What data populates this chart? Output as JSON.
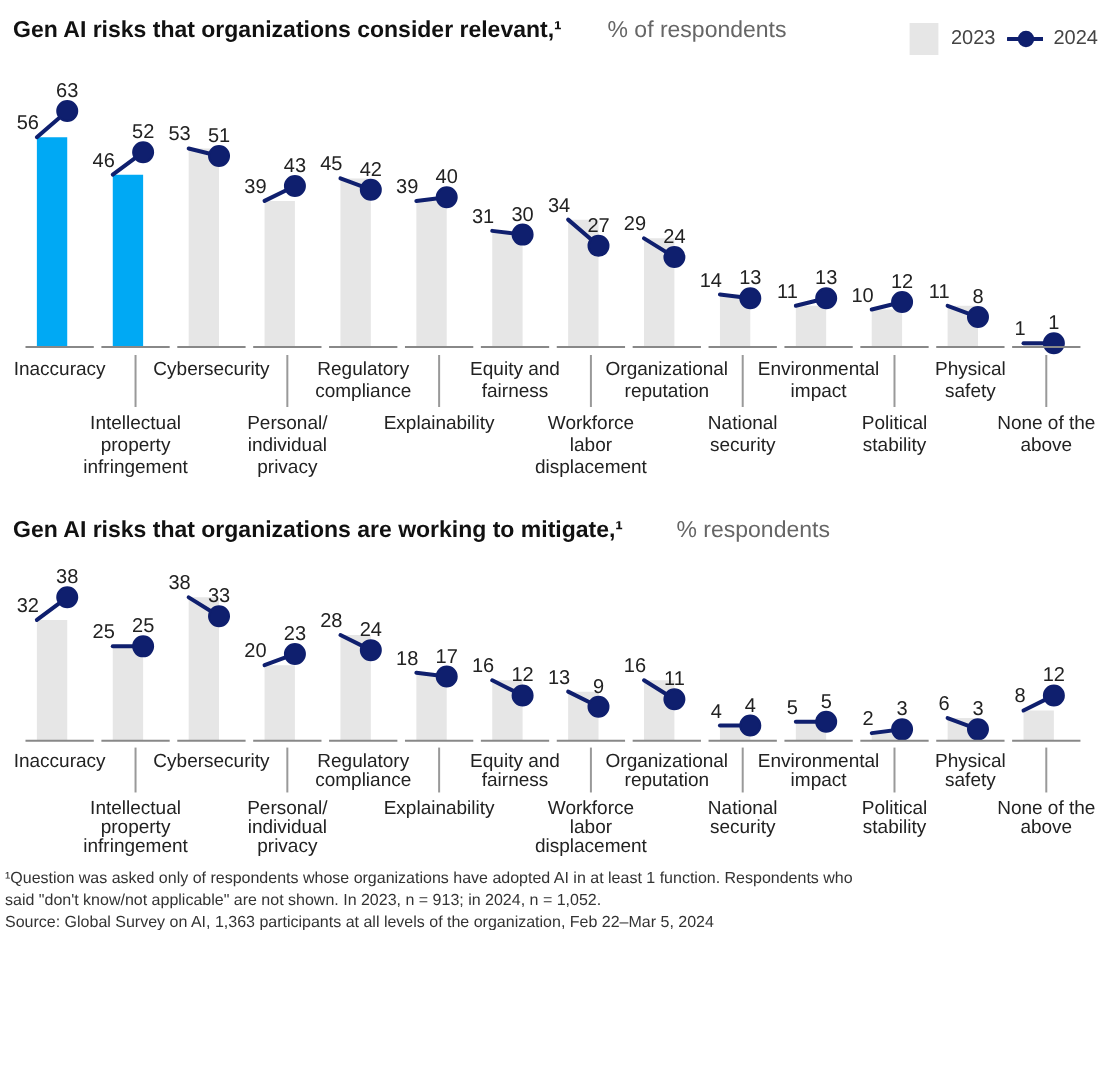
{
  "chart_data": [
    {
      "type": "bar",
      "title": "Gen AI risks that organizations consider relevant,¹",
      "subtitle": "% of respondents",
      "categories": [
        "Inaccuracy",
        "Intellectual property infringement",
        "Cybersecurity",
        "Personal/ individual privacy",
        "Regulatory compliance",
        "Explainability",
        "Equity and fairness",
        "Workforce labor displacement",
        "Organizational reputation",
        "National security",
        "Environmental impact",
        "Political stability",
        "Physical safety",
        "None of the above"
      ],
      "series": [
        {
          "name": "2023",
          "type": "bar",
          "colors": [
            "#00a9f4",
            "#00a9f4",
            "#e6e6e6",
            "#e6e6e6",
            "#e6e6e6",
            "#e6e6e6",
            "#e6e6e6",
            "#e6e6e6",
            "#e6e6e6",
            "#e6e6e6",
            "#e6e6e6",
            "#e6e6e6",
            "#e6e6e6",
            "#e6e6e6"
          ],
          "values": [
            56,
            46,
            53,
            39,
            45,
            39,
            31,
            34,
            29,
            14,
            11,
            10,
            11,
            1
          ]
        },
        {
          "name": "2024",
          "type": "scatter",
          "color": "#0f1f6e",
          "values": [
            63,
            52,
            51,
            43,
            42,
            40,
            30,
            27,
            24,
            13,
            13,
            12,
            8,
            1
          ]
        }
      ],
      "marker": "circle",
      "data_labels": true,
      "legend": "top right",
      "tick_labels": "x"
    },
    {
      "type": "bar",
      "title": "Gen AI risks that organizations are working to mitigate,¹",
      "subtitle": "% respondents",
      "categories": [
        "Inaccuracy",
        "Intellectual property infringement",
        "Cybersecurity",
        "Personal/ individual privacy",
        "Regulatory compliance",
        "Explainability",
        "Equity and fairness",
        "Workforce labor displacement",
        "Organizational reputation",
        "National security",
        "Environmental impact",
        "Political stability",
        "Physical safety",
        "None of the above"
      ],
      "series": [
        {
          "name": "2023",
          "type": "bar",
          "colors": [
            "#e6e6e6",
            "#e6e6e6",
            "#e6e6e6",
            "#e6e6e6",
            "#e6e6e6",
            "#e6e6e6",
            "#e6e6e6",
            "#e6e6e6",
            "#e6e6e6",
            "#e6e6e6",
            "#e6e6e6",
            "#e6e6e6",
            "#e6e6e6",
            "#e6e6e6"
          ],
          "values": [
            32,
            25,
            38,
            20,
            28,
            18,
            16,
            13,
            16,
            4,
            5,
            2,
            6,
            8
          ]
        },
        {
          "name": "2024",
          "type": "scatter",
          "color": "#0f1f6e",
          "values": [
            38,
            25,
            33,
            23,
            24,
            17,
            12,
            9,
            11,
            4,
            5,
            3,
            3,
            12
          ]
        }
      ],
      "marker": "circle",
      "data_labels": true,
      "tick_labels": "x",
      "annotations": [
        "¹Question was asked only of respondents whose organizations have adopted AI in at least 1 function. Respondents who said \"don't know/not applicable\" are not shown. In 2023, n = 913; in 2024, n = 1,052.",
        "Source: Global Survey on AI, 1,363 participants at all levels of the organization, Feb 22–Mar 5, 2024"
      ]
    }
  ]
}
